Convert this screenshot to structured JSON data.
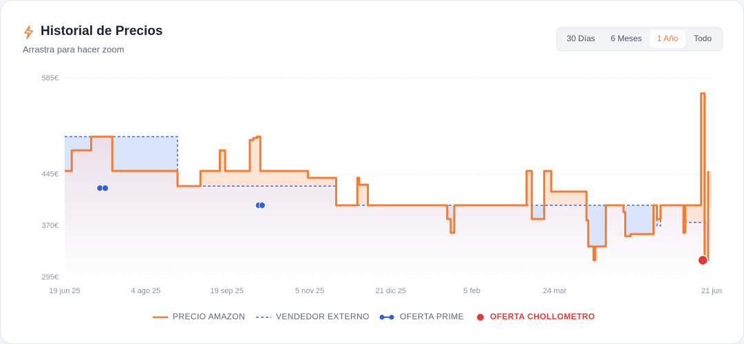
{
  "header": {
    "title": "Historial de Precios",
    "subtitle": "Arrastra para hacer zoom"
  },
  "range_buttons": [
    {
      "label": "30 Días",
      "active": false
    },
    {
      "label": "6 Meses",
      "active": false
    },
    {
      "label": "1 Año",
      "active": true
    },
    {
      "label": "Todo",
      "active": false
    }
  ],
  "chart_data": {
    "type": "line",
    "step": true,
    "grid": true,
    "xlim": [
      "2025-06-19",
      "2026-06-21"
    ],
    "xticks": [
      {
        "value": "2025-06-19",
        "label": "19 jun 25"
      },
      {
        "value": "2025-08-04",
        "label": "4 ago 25"
      },
      {
        "value": "2025-09-19",
        "label": "19 sep 25"
      },
      {
        "value": "2025-11-05",
        "label": "5 nov 25"
      },
      {
        "value": "2025-12-21",
        "label": "21 dic 25"
      },
      {
        "value": "2026-02-05",
        "label": "5 feb"
      },
      {
        "value": "2026-03-24",
        "label": "24 mar"
      },
      {
        "value": "2026-06-21",
        "label": "21 jun"
      }
    ],
    "ylim": [
      295,
      585
    ],
    "yticks": [
      {
        "value": 295,
        "label": "295€"
      },
      {
        "value": 370,
        "label": "370€"
      },
      {
        "value": 445,
        "label": "445€"
      },
      {
        "value": 585,
        "label": "585€"
      }
    ],
    "series": [
      {
        "name": "PRECIO AMAZON",
        "color": "#f47c30",
        "mode": "line",
        "x": [
          "2025-06-19",
          "2025-06-23",
          "2025-07-04",
          "2025-07-16",
          "2025-08-22",
          "2025-09-04",
          "2025-09-15",
          "2025-09-18",
          "2025-10-02",
          "2025-10-04",
          "2025-10-06",
          "2025-10-08",
          "2025-11-04",
          "2025-11-20",
          "2025-12-02",
          "2025-12-03",
          "2025-12-08",
          "2026-01-22",
          "2026-01-24",
          "2026-01-26",
          "2026-03-08",
          "2026-03-11",
          "2026-03-18",
          "2026-03-22",
          "2026-04-11",
          "2026-04-12",
          "2026-04-15",
          "2026-04-16",
          "2026-04-22",
          "2026-05-02",
          "2026-05-03",
          "2026-05-06",
          "2026-05-19",
          "2026-05-21",
          "2026-05-23",
          "2026-06-05",
          "2026-06-06",
          "2026-06-15",
          "2026-06-17",
          "2026-06-19"
        ],
        "values": [
          450,
          480,
          500,
          450,
          428,
          450,
          480,
          450,
          495,
          498,
          500,
          450,
          440,
          400,
          440,
          430,
          400,
          380,
          360,
          400,
          450,
          380,
          450,
          420,
          378,
          340,
          320,
          340,
          400,
          390,
          355,
          358,
          400,
          380,
          400,
          360,
          400,
          563,
          320,
          450
        ]
      },
      {
        "name": "VENDEDOR EXTERNO",
        "color": "#3b6fe0",
        "mode": "dashed",
        "x": [
          "2025-06-19",
          "2025-08-22",
          "2025-11-20",
          "2026-05-19",
          "2026-05-21",
          "2026-05-23",
          "2026-06-05",
          "2026-06-06",
          "2026-06-19"
        ],
        "values": [
          500,
          428,
          400,
          400,
          370,
          400,
          400,
          375,
          400
        ]
      },
      {
        "name": "OFERTA PRIME",
        "color": "#2f5fdc",
        "mode": "markers",
        "x": [
          "2025-07-09",
          "2025-07-12",
          "2025-10-07",
          "2025-10-09"
        ],
        "values": [
          425,
          425,
          400,
          400
        ]
      },
      {
        "name": "OFERTA CHOLLOMETRO",
        "color": "#e53935",
        "mode": "markers",
        "x": [
          "2026-06-16"
        ],
        "values": [
          320
        ]
      }
    ]
  }
}
